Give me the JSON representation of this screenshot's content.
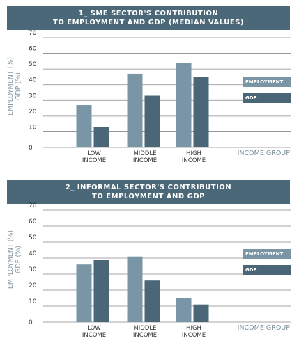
{
  "colors": {
    "header": "#4a6878",
    "employment": "#7a95a5",
    "gdp": "#4b6676",
    "grid": "#8a8a8a"
  },
  "chart_data": [
    {
      "type": "bar",
      "title_lines": [
        "1_ SME SECTOR'S CONTRIBUTION",
        "TO EMPLOYMENT AND GDP (MEDIAN VALUES)"
      ],
      "ylabel_lines": [
        "EMPLOYMENT (%)",
        "GDP (%)"
      ],
      "xlabel": "INCOME GROUP",
      "categories": [
        [
          "LOW",
          "INCOME"
        ],
        [
          "MIDDLE",
          "INCOME"
        ],
        [
          "HIGH",
          "INCOME"
        ]
      ],
      "series": [
        {
          "name": "EMPLOYMENT",
          "values": [
            27,
            47,
            54
          ]
        },
        {
          "name": "GDP",
          "values": [
            13,
            33,
            45
          ]
        }
      ],
      "yticks": [
        "0",
        "10",
        "20",
        "30",
        "40",
        "50",
        "60",
        "70"
      ],
      "ylim": [
        0,
        70
      ],
      "grid": true,
      "legend_position": "right"
    },
    {
      "type": "bar",
      "title_lines": [
        "2_ INFORMAL SECTOR'S CONTRIBUTION",
        "TO EMPLOYMENT AND GDP"
      ],
      "ylabel_lines": [
        "EMPLOYMENT (%)",
        "GDP (%)"
      ],
      "xlabel": "INCOME GROUP",
      "categories": [
        [
          "LOW",
          "INCOME"
        ],
        [
          "MIDDLE",
          "INCOME"
        ],
        [
          "HIGH",
          "INCOME"
        ]
      ],
      "series": [
        {
          "name": "EMPLOYMENT",
          "values": [
            36,
            41,
            15
          ]
        },
        {
          "name": "GDP",
          "values": [
            39,
            26,
            11
          ]
        }
      ],
      "yticks": [
        "0",
        "10",
        "20",
        "30",
        "40",
        "50",
        "60",
        "70"
      ],
      "ylim": [
        0,
        70
      ],
      "grid": true,
      "legend_position": "right"
    }
  ]
}
